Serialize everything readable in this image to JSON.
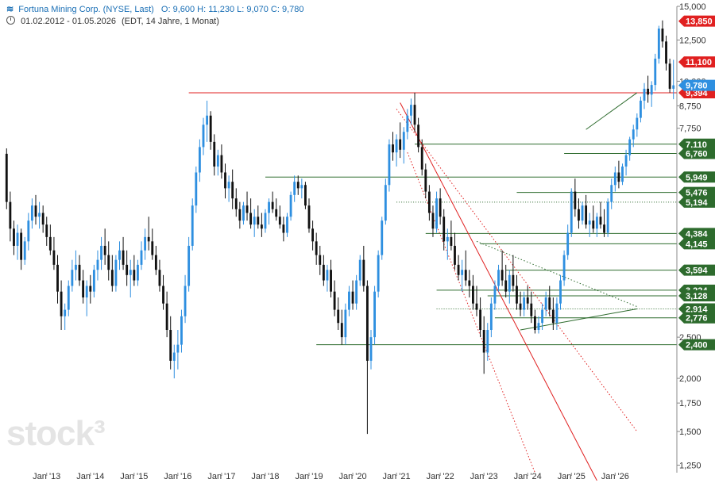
{
  "header": {
    "title": "Fortuna Mining Corp. (NYSE, Last)",
    "ohlc": "O: 9,600  H: 11,230  L: 9,070  C: 9,780",
    "range": "01.02.2012 - 01.05.2026",
    "info": "(EDT, 14 Jahre, 1 Monat)"
  },
  "watermark": "stock³",
  "colors": {
    "up": "#2e8fe0",
    "down": "#111111",
    "support": "#2d6b2d",
    "resistance": "#e02020",
    "last": "#2e8fe0"
  },
  "chart_data": {
    "type": "candlestick",
    "scale": "log",
    "ylim": [
      1.2,
      15.0
    ],
    "y_ticks": [
      {
        "v": 15.0,
        "label": "15,000"
      },
      {
        "v": 12.5,
        "label": "12,500"
      },
      {
        "v": 10.0,
        "label": "10,000"
      },
      {
        "v": 8.75,
        "label": "8,750"
      },
      {
        "v": 7.75,
        "label": "7,750"
      },
      {
        "v": 2.5,
        "label": "2,500"
      },
      {
        "v": 2.0,
        "label": "2,000"
      },
      {
        "v": 1.75,
        "label": "1,750"
      },
      {
        "v": 1.5,
        "label": "1,500"
      },
      {
        "v": 1.25,
        "label": "1,250"
      }
    ],
    "x_ticks": [
      "Jan '13",
      "Jan '14",
      "Jan '15",
      "Jan '16",
      "Jan '17",
      "Jan '18",
      "Jan '19",
      "Jan '20",
      "Jan '21",
      "Jan '22",
      "Jan '23",
      "Jan '24",
      "Jan '25",
      "Jan '26"
    ],
    "x_start": "2012-02",
    "candles": [
      [
        6.75,
        6.95,
        5.0,
        5.2
      ],
      [
        5.2,
        5.5,
        4.2,
        4.5
      ],
      [
        4.5,
        4.7,
        3.9,
        4.1
      ],
      [
        4.1,
        4.6,
        3.8,
        4.4
      ],
      [
        4.4,
        4.5,
        3.6,
        3.8
      ],
      [
        3.8,
        4.3,
        3.7,
        4.2
      ],
      [
        4.2,
        4.9,
        4.0,
        4.7
      ],
      [
        4.7,
        5.3,
        4.5,
        5.1
      ],
      [
        5.1,
        5.4,
        4.6,
        4.8
      ],
      [
        4.8,
        5.2,
        4.5,
        4.9
      ],
      [
        4.9,
        5.1,
        4.4,
        4.6
      ],
      [
        4.6,
        4.8,
        4.1,
        4.3
      ],
      [
        4.3,
        4.6,
        3.9,
        4.0
      ],
      [
        4.0,
        4.3,
        3.6,
        3.7
      ],
      [
        3.7,
        3.9,
        3.0,
        3.2
      ],
      [
        3.2,
        3.4,
        2.6,
        2.8
      ],
      [
        2.8,
        3.0,
        2.6,
        2.9
      ],
      [
        2.9,
        3.4,
        2.8,
        3.3
      ],
      [
        3.3,
        3.8,
        3.2,
        3.6
      ],
      [
        3.6,
        4.0,
        3.4,
        3.7
      ],
      [
        3.7,
        3.9,
        3.3,
        3.4
      ],
      [
        3.4,
        3.6,
        3.0,
        3.1
      ],
      [
        3.1,
        3.4,
        2.8,
        3.3
      ],
      [
        3.3,
        3.5,
        3.0,
        3.2
      ],
      [
        3.2,
        3.7,
        3.1,
        3.6
      ],
      [
        3.6,
        4.0,
        3.4,
        3.8
      ],
      [
        3.8,
        4.3,
        3.6,
        4.1
      ],
      [
        4.1,
        4.5,
        3.7,
        3.9
      ],
      [
        3.9,
        4.2,
        3.4,
        3.6
      ],
      [
        3.6,
        3.9,
        3.2,
        3.3
      ],
      [
        3.3,
        3.9,
        3.2,
        3.8
      ],
      [
        3.8,
        4.2,
        3.6,
        4.0
      ],
      [
        4.0,
        4.3,
        3.6,
        3.7
      ],
      [
        3.7,
        4.0,
        3.3,
        3.5
      ],
      [
        3.5,
        3.8,
        3.1,
        3.6
      ],
      [
        3.6,
        3.9,
        3.3,
        3.4
      ],
      [
        3.4,
        3.8,
        3.3,
        3.7
      ],
      [
        3.7,
        4.2,
        3.6,
        4.0
      ],
      [
        4.0,
        4.5,
        3.8,
        4.3
      ],
      [
        4.3,
        4.8,
        4.0,
        4.2
      ],
      [
        4.2,
        4.5,
        3.8,
        3.9
      ],
      [
        3.9,
        4.1,
        3.5,
        3.6
      ],
      [
        3.6,
        3.8,
        3.2,
        3.3
      ],
      [
        3.3,
        3.5,
        2.9,
        3.0
      ],
      [
        3.0,
        3.2,
        2.5,
        2.6
      ],
      [
        2.6,
        2.8,
        2.1,
        2.2
      ],
      [
        2.2,
        2.4,
        2.0,
        2.3
      ],
      [
        2.3,
        2.6,
        2.1,
        2.4
      ],
      [
        2.4,
        2.9,
        2.3,
        2.8
      ],
      [
        2.8,
        3.5,
        2.7,
        3.3
      ],
      [
        3.3,
        4.3,
        3.2,
        4.1
      ],
      [
        4.1,
        5.3,
        4.0,
        5.1
      ],
      [
        5.1,
        6.3,
        4.9,
        6.1
      ],
      [
        6.1,
        7.3,
        5.8,
        7.0
      ],
      [
        7.0,
        8.2,
        6.7,
        7.9
      ],
      [
        7.9,
        9.0,
        7.2,
        8.3
      ],
      [
        8.3,
        8.5,
        6.9,
        7.2
      ],
      [
        7.2,
        7.5,
        6.0,
        6.3
      ],
      [
        6.3,
        6.9,
        6.0,
        6.7
      ],
      [
        6.7,
        7.1,
        5.9,
        6.1
      ],
      [
        6.1,
        6.4,
        5.3,
        5.6
      ],
      [
        5.6,
        6.0,
        5.2,
        5.8
      ],
      [
        5.8,
        6.2,
        5.0,
        5.3
      ],
      [
        5.3,
        5.6,
        4.8,
        5.0
      ],
      [
        5.0,
        5.2,
        4.5,
        4.7
      ],
      [
        4.7,
        5.2,
        4.6,
        5.1
      ],
      [
        5.1,
        5.5,
        4.7,
        4.9
      ],
      [
        4.9,
        5.3,
        4.5,
        4.6
      ],
      [
        4.6,
        5.0,
        4.3,
        4.8
      ],
      [
        4.8,
        5.1,
        4.5,
        4.6
      ],
      [
        4.6,
        4.9,
        4.3,
        4.5
      ],
      [
        4.5,
        5.0,
        4.4,
        4.9
      ],
      [
        4.9,
        5.3,
        4.6,
        5.2
      ],
      [
        5.2,
        5.5,
        4.9,
        5.0
      ],
      [
        5.0,
        5.3,
        4.7,
        4.8
      ],
      [
        4.8,
        5.1,
        4.5,
        4.6
      ],
      [
        4.6,
        4.8,
        4.2,
        4.4
      ],
      [
        4.4,
        4.9,
        4.3,
        4.8
      ],
      [
        4.8,
        5.5,
        4.7,
        5.4
      ],
      [
        5.4,
        6.0,
        5.2,
        5.8
      ],
      [
        5.8,
        6.0,
        5.4,
        5.6
      ],
      [
        5.6,
        5.9,
        5.3,
        5.7
      ],
      [
        5.7,
        5.8,
        5.0,
        5.1
      ],
      [
        5.1,
        5.3,
        4.4,
        4.5
      ],
      [
        4.5,
        4.7,
        4.0,
        4.2
      ],
      [
        4.2,
        4.4,
        3.7,
        3.9
      ],
      [
        3.9,
        4.1,
        3.5,
        3.7
      ],
      [
        3.7,
        3.9,
        3.3,
        3.4
      ],
      [
        3.4,
        3.7,
        3.2,
        3.6
      ],
      [
        3.6,
        3.8,
        3.1,
        3.2
      ],
      [
        3.2,
        3.4,
        2.8,
        2.9
      ],
      [
        2.9,
        3.1,
        2.6,
        2.7
      ],
      [
        2.7,
        2.9,
        2.4,
        2.5
      ],
      [
        2.5,
        3.0,
        2.4,
        2.9
      ],
      [
        2.9,
        3.3,
        2.8,
        3.2
      ],
      [
        3.2,
        3.4,
        2.9,
        3.0
      ],
      [
        3.0,
        3.5,
        2.9,
        3.4
      ],
      [
        3.4,
        3.9,
        3.3,
        3.8
      ],
      [
        3.8,
        4.1,
        3.2,
        3.3
      ],
      [
        3.3,
        3.4,
        1.48,
        2.2
      ],
      [
        2.2,
        2.6,
        2.1,
        2.5
      ],
      [
        2.5,
        3.3,
        2.4,
        3.2
      ],
      [
        3.2,
        4.0,
        3.1,
        3.9
      ],
      [
        3.9,
        4.8,
        3.8,
        4.7
      ],
      [
        4.7,
        5.9,
        4.6,
        5.7
      ],
      [
        5.7,
        7.3,
        5.5,
        7.1
      ],
      [
        7.1,
        7.6,
        6.5,
        6.8
      ],
      [
        6.8,
        7.5,
        6.3,
        7.3
      ],
      [
        7.3,
        8.0,
        6.6,
        6.9
      ],
      [
        6.9,
        7.8,
        6.4,
        7.6
      ],
      [
        7.6,
        8.6,
        7.3,
        8.3
      ],
      [
        8.3,
        9.1,
        7.9,
        8.8
      ],
      [
        8.8,
        9.4,
        7.6,
        7.9
      ],
      [
        7.9,
        8.2,
        6.8,
        7.0
      ],
      [
        7.0,
        7.3,
        6.0,
        6.2
      ],
      [
        6.2,
        6.4,
        5.3,
        5.5
      ],
      [
        5.5,
        5.7,
        4.7,
        4.9
      ],
      [
        4.9,
        5.1,
        4.3,
        4.5
      ],
      [
        4.5,
        5.5,
        4.4,
        5.3
      ],
      [
        5.3,
        5.6,
        4.6,
        4.8
      ],
      [
        4.8,
        5.0,
        4.0,
        4.2
      ],
      [
        4.2,
        4.5,
        3.8,
        4.3
      ],
      [
        4.3,
        4.7,
        4.0,
        4.1
      ],
      [
        4.1,
        4.4,
        3.6,
        3.7
      ],
      [
        3.7,
        3.9,
        3.4,
        3.5
      ],
      [
        3.5,
        3.8,
        3.2,
        3.6
      ],
      [
        3.6,
        4.0,
        3.3,
        3.4
      ],
      [
        3.4,
        3.6,
        3.1,
        3.3
      ],
      [
        3.3,
        3.5,
        2.9,
        3.0
      ],
      [
        3.0,
        3.3,
        2.8,
        2.9
      ],
      [
        2.9,
        3.1,
        2.5,
        2.6
      ],
      [
        2.6,
        2.8,
        2.05,
        2.3
      ],
      [
        2.3,
        2.7,
        2.2,
        2.6
      ],
      [
        2.6,
        3.1,
        2.5,
        3.0
      ],
      [
        3.0,
        3.4,
        2.9,
        3.3
      ],
      [
        3.3,
        3.7,
        3.2,
        3.6
      ],
      [
        3.6,
        4.0,
        3.3,
        3.4
      ],
      [
        3.4,
        3.7,
        3.1,
        3.2
      ],
      [
        3.2,
        3.6,
        3.0,
        3.5
      ],
      [
        3.5,
        3.9,
        3.2,
        3.3
      ],
      [
        3.3,
        3.5,
        2.9,
        3.0
      ],
      [
        3.0,
        3.2,
        2.8,
        2.9
      ],
      [
        2.9,
        3.2,
        2.8,
        3.1
      ],
      [
        3.1,
        3.3,
        2.9,
        3.0
      ],
      [
        3.0,
        3.2,
        2.7,
        2.8
      ],
      [
        2.8,
        2.9,
        2.55,
        2.6
      ],
      [
        2.6,
        2.8,
        2.55,
        2.7
      ],
      [
        2.7,
        3.0,
        2.6,
        2.9
      ],
      [
        2.9,
        3.2,
        2.8,
        3.1
      ],
      [
        3.1,
        3.3,
        2.8,
        2.9
      ],
      [
        2.9,
        3.1,
        2.6,
        2.7
      ],
      [
        2.7,
        3.1,
        2.6,
        3.0
      ],
      [
        3.0,
        3.5,
        2.9,
        3.4
      ],
      [
        3.4,
        4.0,
        3.3,
        3.9
      ],
      [
        3.9,
        4.6,
        3.8,
        4.4
      ],
      [
        4.4,
        5.6,
        4.3,
        5.5
      ],
      [
        5.5,
        5.9,
        4.8,
        5.0
      ],
      [
        5.0,
        5.3,
        4.5,
        4.7
      ],
      [
        4.7,
        5.2,
        4.6,
        5.1
      ],
      [
        5.1,
        5.4,
        4.5,
        4.6
      ],
      [
        4.6,
        4.9,
        4.3,
        4.7
      ],
      [
        4.7,
        5.1,
        4.4,
        4.5
      ],
      [
        4.5,
        4.9,
        4.3,
        4.8
      ],
      [
        4.8,
        5.2,
        4.5,
        4.6
      ],
      [
        4.6,
        5.0,
        4.3,
        4.4
      ],
      [
        4.4,
        5.3,
        4.3,
        5.2
      ],
      [
        5.2,
        5.9,
        5.0,
        5.7
      ],
      [
        5.7,
        6.3,
        5.5,
        6.1
      ],
      [
        6.1,
        6.5,
        5.6,
        5.8
      ],
      [
        5.8,
        6.4,
        5.7,
        6.3
      ],
      [
        6.3,
        6.9,
        6.0,
        6.7
      ],
      [
        6.7,
        7.4,
        6.5,
        7.3
      ],
      [
        7.3,
        7.9,
        7.0,
        7.7
      ],
      [
        7.7,
        8.4,
        7.4,
        8.2
      ],
      [
        8.2,
        9.2,
        8.0,
        9.0
      ],
      [
        9.0,
        9.9,
        8.6,
        9.6
      ],
      [
        9.6,
        10.3,
        8.9,
        9.3
      ],
      [
        9.3,
        10.0,
        8.7,
        9.8
      ],
      [
        9.8,
        11.6,
        9.5,
        11.3
      ],
      [
        11.3,
        13.5,
        11.0,
        13.3
      ],
      [
        13.3,
        13.9,
        12.0,
        12.4
      ],
      [
        12.4,
        12.8,
        10.6,
        11.0
      ],
      [
        11.0,
        11.3,
        9.4,
        9.6
      ],
      [
        9.6,
        11.23,
        9.07,
        9.78
      ]
    ],
    "levels": [
      {
        "value": 13.85,
        "label": "13,850",
        "kind": "resistance"
      },
      {
        "value": 11.1,
        "label": "11,100",
        "kind": "resistance"
      },
      {
        "value": 9.394,
        "label": "9,394",
        "kind": "resistance"
      },
      {
        "value": 9.78,
        "label": "9,780",
        "kind": "last"
      },
      {
        "value": 7.11,
        "label": "7,110",
        "kind": "support"
      },
      {
        "value": 6.76,
        "label": "6,760",
        "kind": "support"
      },
      {
        "value": 5.949,
        "label": "5,949",
        "kind": "support"
      },
      {
        "value": 5.476,
        "label": "5,476",
        "kind": "support"
      },
      {
        "value": 5.194,
        "label": "5,194",
        "kind": "support"
      },
      {
        "value": 4.384,
        "label": "4,384",
        "kind": "support"
      },
      {
        "value": 4.145,
        "label": "4,145",
        "kind": "support"
      },
      {
        "value": 3.594,
        "label": "3,594",
        "kind": "support"
      },
      {
        "value": 3.224,
        "label": "3,224",
        "kind": "support"
      },
      {
        "value": 3.128,
        "label": "3,128",
        "kind": "support"
      },
      {
        "value": 2.914,
        "label": "2,914",
        "kind": "support"
      },
      {
        "value": 2.776,
        "label": "2,776",
        "kind": "support"
      },
      {
        "value": 2.4,
        "label": "2,400",
        "kind": "support"
      }
    ],
    "hlines": [
      {
        "value": 9.394,
        "from": "2016-04",
        "color": "resistance"
      },
      {
        "value": 7.11,
        "from": "2021-06",
        "color": "support"
      },
      {
        "value": 6.76,
        "from": "2024-11",
        "color": "support"
      },
      {
        "value": 5.949,
        "from": "2018-01",
        "color": "support"
      },
      {
        "value": 5.476,
        "from": "2023-10",
        "color": "support"
      },
      {
        "value": 5.194,
        "from": "2021-01",
        "color": "support",
        "dotted": true
      },
      {
        "value": 4.384,
        "from": "2021-09",
        "color": "support"
      },
      {
        "value": 4.145,
        "from": "2022-12",
        "color": "support"
      },
      {
        "value": 3.594,
        "from": "2023-07",
        "color": "support"
      },
      {
        "value": 3.224,
        "from": "2021-12",
        "color": "support"
      },
      {
        "value": 3.128,
        "from": "2023-02",
        "color": "support"
      },
      {
        "value": 2.914,
        "from": "2021-12",
        "color": "support",
        "dotted": true
      },
      {
        "value": 2.776,
        "from": "2023-04",
        "color": "support"
      },
      {
        "value": 2.4,
        "from": "2019-03",
        "color": "support"
      }
    ],
    "trendlines": [
      {
        "from": [
          "2021-02",
          8.9
        ],
        "to": [
          "2025-08",
          1.15
        ],
        "color": "resistance",
        "dotted": false
      },
      {
        "from": [
          "2021-01",
          8.6
        ],
        "to": [
          "2026-07",
          1.5
        ],
        "color": "resistance",
        "dotted": true
      },
      {
        "from": [
          "2021-04",
          6.8
        ],
        "to": [
          "2024-03",
          1.2
        ],
        "color": "resistance",
        "dotted": true
      },
      {
        "from": [
          "2023-11",
          2.6
        ],
        "to": [
          "2026-07",
          2.914
        ],
        "color": "support",
        "dotted": false
      },
      {
        "from": [
          "2025-05",
          7.7
        ],
        "to": [
          "2026-07",
          9.394
        ],
        "color": "support",
        "dotted": false
      },
      {
        "from": [
          "2022-11",
          4.2
        ],
        "to": [
          "2026-07",
          2.95
        ],
        "color": "support",
        "dotted": true
      }
    ]
  }
}
